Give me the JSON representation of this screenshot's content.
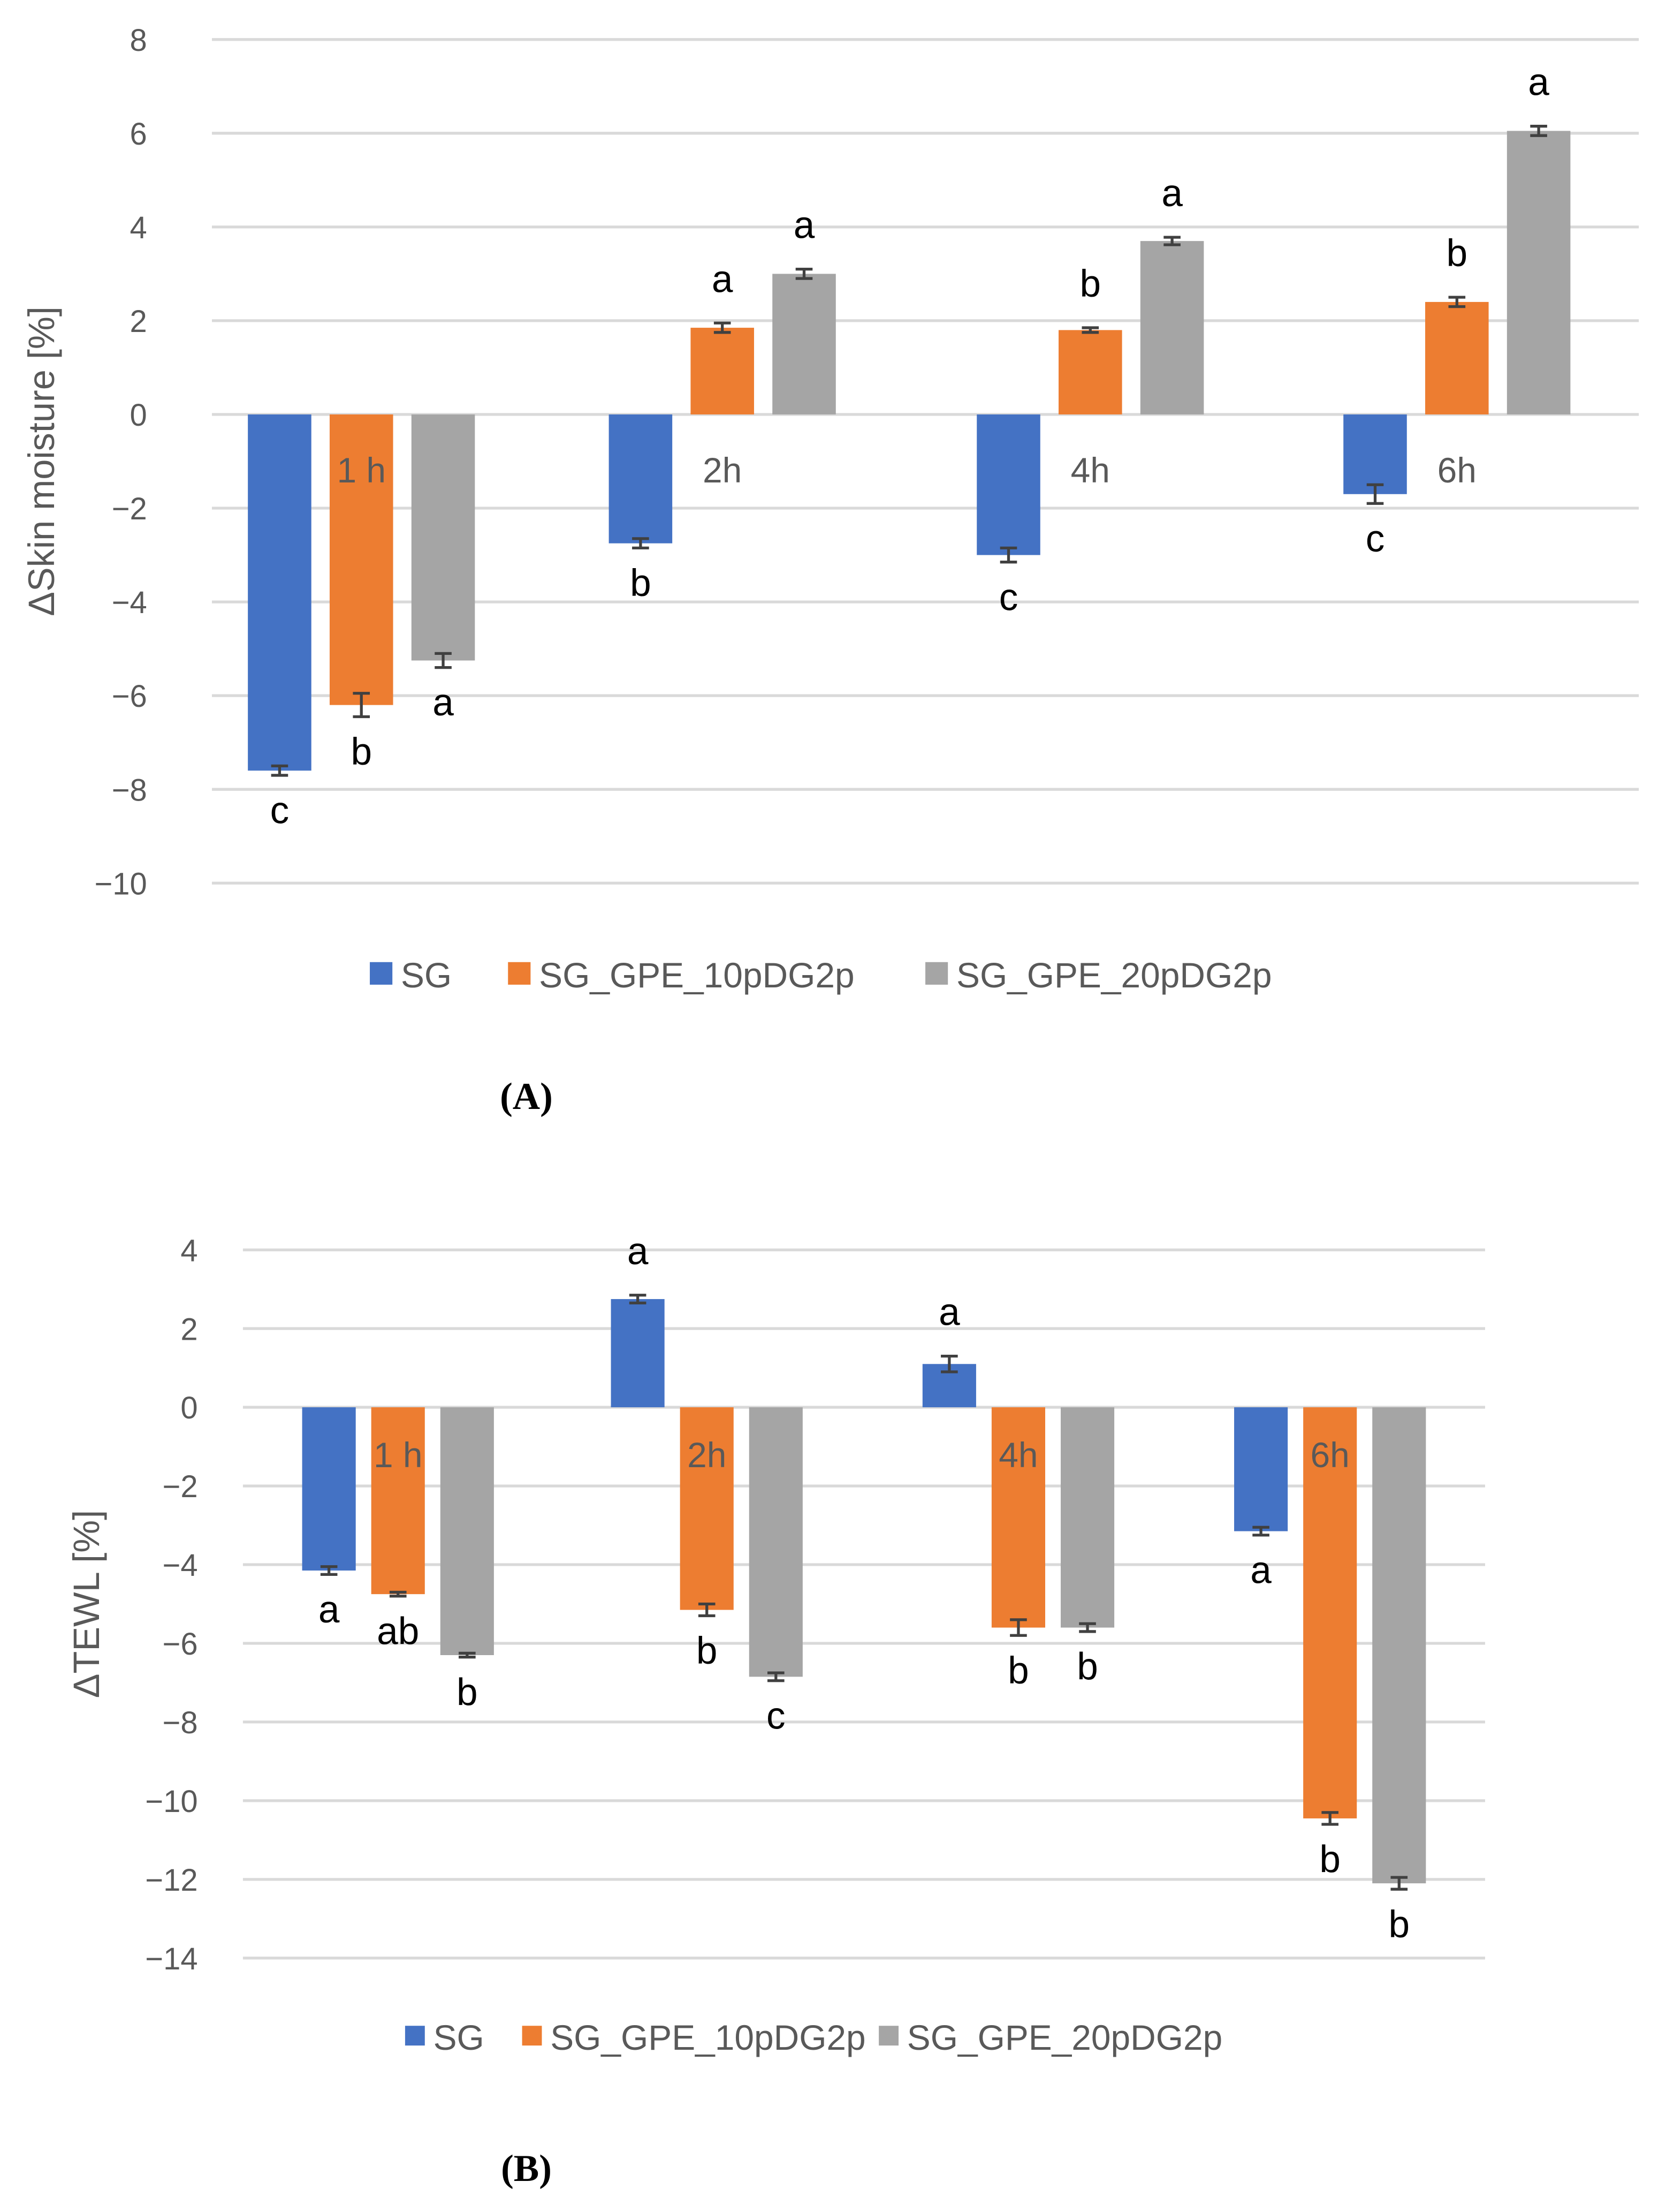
{
  "colors": {
    "SG": "#4472C4",
    "SG_GPE_10pDG2p": "#ED7D31",
    "SG_GPE_20pDG2p": "#A5A5A5",
    "grid": "#D9D9D9",
    "error": "#404040"
  },
  "chart_data": [
    {
      "type": "bar",
      "panel_label": "(A)",
      "title": "",
      "xlabel": "",
      "ylabel": "ΔSkin moisture [%]",
      "ylim": [
        -10,
        8
      ],
      "yticks": [
        8,
        6,
        4,
        2,
        0,
        -2,
        -4,
        -6,
        -8,
        -10
      ],
      "ytick_labels": [
        "8",
        "6",
        "4",
        "2",
        "0",
        "−2",
        "−4",
        "−6",
        "−8",
        "−10"
      ],
      "grid": true,
      "legend": "bottom",
      "categories": [
        "1 h",
        "2h",
        "4h",
        "6h"
      ],
      "series": [
        {
          "name": "SG",
          "values": [
            -7.6,
            -2.75,
            -3.0,
            -1.7
          ],
          "errors": [
            0.1,
            0.1,
            0.15,
            0.2
          ],
          "letters": [
            "c",
            "b",
            "c",
            "c"
          ]
        },
        {
          "name": "SG_GPE_10pDG2p",
          "values": [
            -6.2,
            1.85,
            1.8,
            2.4
          ],
          "errors": [
            0.25,
            0.1,
            0.05,
            0.1
          ],
          "letters": [
            "b",
            "a",
            "b",
            "b"
          ]
        },
        {
          "name": "SG_GPE_20pDG2p",
          "values": [
            -5.25,
            3.0,
            3.7,
            6.05
          ],
          "errors": [
            0.15,
            0.1,
            0.08,
            0.1
          ],
          "letters": [
            "a",
            "a",
            "a",
            "a"
          ]
        }
      ]
    },
    {
      "type": "bar",
      "panel_label": "(B)",
      "title": "",
      "xlabel": "",
      "ylabel": "ΔTEWL [%]",
      "ylim": [
        -14,
        4
      ],
      "yticks": [
        4,
        2,
        0,
        -2,
        -4,
        -6,
        -8,
        -10,
        -12,
        -14
      ],
      "ytick_labels": [
        "4",
        "2",
        "0",
        "−2",
        "−4",
        "−6",
        "−8",
        "−10",
        "−12",
        "−14"
      ],
      "grid": true,
      "legend": "bottom",
      "categories": [
        "1 h",
        "2h",
        "4h",
        "6h"
      ],
      "series": [
        {
          "name": "SG",
          "values": [
            -4.15,
            2.75,
            1.1,
            -3.15
          ],
          "errors": [
            0.1,
            0.1,
            0.2,
            0.1
          ],
          "letters": [
            "a",
            "a",
            "a",
            "a"
          ]
        },
        {
          "name": "SG_GPE_10pDG2p",
          "values": [
            -4.75,
            -5.15,
            -5.6,
            -10.45
          ],
          "errors": [
            0.05,
            0.15,
            0.2,
            0.15
          ],
          "letters": [
            "ab",
            "b",
            "b",
            "b"
          ]
        },
        {
          "name": "SG_GPE_20pDG2p",
          "values": [
            -6.3,
            -6.85,
            -5.6,
            -12.1
          ],
          "errors": [
            0.05,
            0.1,
            0.1,
            0.15
          ],
          "letters": [
            "b",
            "c",
            "b",
            "b"
          ]
        }
      ]
    }
  ]
}
